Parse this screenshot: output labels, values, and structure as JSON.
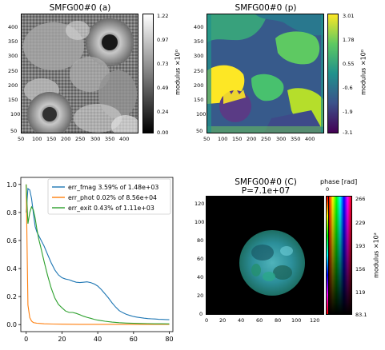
{
  "panel_a": {
    "title": "SMFG00#0 (a)",
    "x_ticks": [
      "50",
      "100",
      "150",
      "200",
      "250",
      "300",
      "350",
      "400"
    ],
    "y_ticks": [
      "400",
      "350",
      "300",
      "250",
      "200",
      "150",
      "100",
      "50"
    ],
    "cbar_ticks": [
      "1.22",
      "0.97",
      "0.73",
      "0.49",
      "0.24",
      "0.00"
    ],
    "cbar_label": "modulus ×10⁰"
  },
  "panel_p": {
    "title": "SMFG00#0 (p)",
    "x_ticks": [
      "50",
      "100",
      "150",
      "200",
      "250",
      "300",
      "350",
      "400"
    ],
    "y_ticks": [
      "400",
      "350",
      "300",
      "250",
      "200",
      "150",
      "100",
      "50"
    ],
    "cbar_ticks": [
      "3.01",
      "1.78",
      "0.55",
      "-0.6",
      "-1.9",
      "-3.1"
    ],
    "cbar_label": "modulus ×10⁰"
  },
  "panel_c": {
    "title_line1": "SMFG00#0 (C)",
    "title_line2": "P=7.1e+07",
    "x_ticks": [
      "0",
      "20",
      "40",
      "60",
      "80",
      "100",
      "120"
    ],
    "y_ticks": [
      "120",
      "100",
      "80",
      "60",
      "40",
      "20",
      "0"
    ],
    "phase_label": "phase [rad]",
    "phase_tick": "0",
    "cbar_ticks": [
      "266",
      "229",
      "193",
      "156",
      "119",
      "83.1"
    ],
    "cbar_label": "modulus ×10²"
  },
  "chart_data": {
    "type": "line",
    "xlim": [
      -3,
      82
    ],
    "ylim": [
      -0.05,
      1.05
    ],
    "x_ticks": [
      "0",
      "20",
      "40",
      "60",
      "80"
    ],
    "y_ticks": [
      "1.0",
      "0.8",
      "0.6",
      "0.4",
      "0.2",
      "0.0"
    ],
    "legend_position": "top-right",
    "series": [
      {
        "name": "err_fmag 3.59% of 1.48e+03",
        "color": "#1f77b4",
        "x": [
          0,
          1,
          2,
          3,
          4,
          5,
          6,
          8,
          10,
          12,
          14,
          16,
          18,
          20,
          22,
          24,
          26,
          28,
          30,
          32,
          34,
          36,
          38,
          40,
          42,
          44,
          46,
          48,
          50,
          52,
          54,
          56,
          58,
          60,
          62,
          64,
          66,
          68,
          70,
          72,
          74,
          76,
          78,
          80
        ],
        "y": [
          0.8,
          0.97,
          0.96,
          0.9,
          0.8,
          0.7,
          0.66,
          0.61,
          0.56,
          0.5,
          0.44,
          0.39,
          0.355,
          0.335,
          0.325,
          0.32,
          0.31,
          0.302,
          0.3,
          0.302,
          0.305,
          0.3,
          0.29,
          0.275,
          0.25,
          0.22,
          0.19,
          0.155,
          0.125,
          0.1,
          0.085,
          0.073,
          0.065,
          0.058,
          0.053,
          0.049,
          0.046,
          0.043,
          0.041,
          0.04,
          0.038,
          0.037,
          0.036,
          0.035
        ]
      },
      {
        "name": "err_phot 0.02% of 8.56e+04",
        "color": "#ff7f0e",
        "x": [
          0,
          1,
          2,
          3,
          4,
          5,
          6,
          8,
          10,
          15,
          20,
          30,
          40,
          50,
          60,
          70,
          80
        ],
        "y": [
          1.0,
          0.14,
          0.05,
          0.025,
          0.015,
          0.012,
          0.01,
          0.008,
          0.006,
          0.004,
          0.003,
          0.002,
          0.002,
          0.002,
          0.002,
          0.002,
          0.002
        ]
      },
      {
        "name": "err_exit 0.43% of 1.11e+03",
        "color": "#2ca02c",
        "x": [
          0,
          1,
          2,
          3,
          4,
          5,
          6,
          7,
          8,
          10,
          12,
          14,
          16,
          18,
          20,
          22,
          24,
          26,
          28,
          30,
          32,
          34,
          36,
          38,
          40,
          44,
          48,
          52,
          56,
          60,
          64,
          68,
          72,
          76,
          80
        ],
        "y": [
          1.0,
          0.72,
          0.8,
          0.84,
          0.82,
          0.76,
          0.68,
          0.61,
          0.56,
          0.45,
          0.35,
          0.26,
          0.19,
          0.145,
          0.12,
          0.097,
          0.087,
          0.087,
          0.08,
          0.07,
          0.06,
          0.052,
          0.045,
          0.038,
          0.032,
          0.024,
          0.018,
          0.014,
          0.011,
          0.009,
          0.008,
          0.007,
          0.006,
          0.006,
          0.005
        ]
      }
    ]
  }
}
